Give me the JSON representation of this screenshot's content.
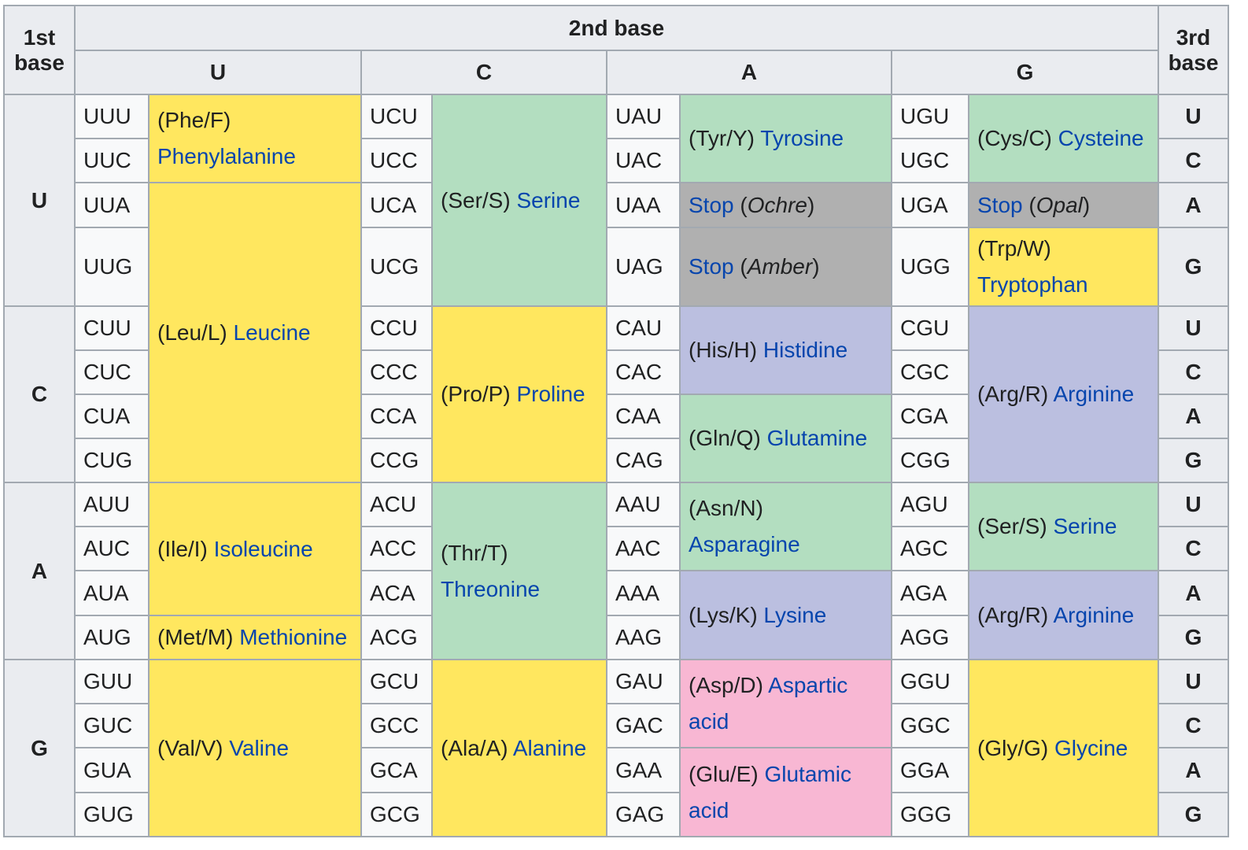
{
  "headers": {
    "first_base": [
      "1st",
      "base"
    ],
    "second_base": "2nd base",
    "third_base": [
      "3rd",
      "base"
    ],
    "bases": [
      "U",
      "C",
      "A",
      "G"
    ]
  },
  "colors": {
    "nonpolar": "#ffe75f",
    "polar": "#b3dec0",
    "stop": "#b0b0b0",
    "basic": "#bbbfe0",
    "acidic": "#f8b7d3",
    "header": "#eaecf0",
    "link": "#0645ad"
  },
  "codons": {
    "U": [
      [
        "UUU",
        "UCU",
        "UAU",
        "UGU"
      ],
      [
        "UUC",
        "UCC",
        "UAC",
        "UGC"
      ],
      [
        "UUA",
        "UCA",
        "UAA",
        "UGA"
      ],
      [
        "UUG",
        "UCG",
        "UAG",
        "UGG"
      ]
    ],
    "C": [
      [
        "CUU",
        "CCU",
        "CAU",
        "CGU"
      ],
      [
        "CUC",
        "CCC",
        "CAC",
        "CGC"
      ],
      [
        "CUA",
        "CCA",
        "CAA",
        "CGA"
      ],
      [
        "CUG",
        "CCG",
        "CAG",
        "CGG"
      ]
    ],
    "A": [
      [
        "AUU",
        "ACU",
        "AAU",
        "AGU"
      ],
      [
        "AUC",
        "ACC",
        "AAC",
        "AGC"
      ],
      [
        "AUA",
        "ACA",
        "AAA",
        "AGA"
      ],
      [
        "AUG",
        "ACG",
        "AAG",
        "AGG"
      ]
    ],
    "G": [
      [
        "GUU",
        "GCU",
        "GAU",
        "GGU"
      ],
      [
        "GUC",
        "GCC",
        "GAC",
        "GGC"
      ],
      [
        "GUA",
        "GCA",
        "GAA",
        "GGA"
      ],
      [
        "GUG",
        "GCG",
        "GAG",
        "GGG"
      ]
    ]
  },
  "amino_acids": {
    "phe": {
      "abbr": "(Phe/F)",
      "name": "Phenylalanine"
    },
    "leu": {
      "abbr": "(Leu/L)",
      "name": "Leucine"
    },
    "ser": {
      "abbr": "(Ser/S)",
      "name": "Serine"
    },
    "tyr": {
      "abbr": "(Tyr/Y)",
      "name": "Tyrosine"
    },
    "cys": {
      "abbr": "(Cys/C)",
      "name": "Cysteine"
    },
    "stop_ochre": {
      "link": "Stop",
      "name": "Ochre"
    },
    "stop_amber": {
      "link": "Stop",
      "name": "Amber"
    },
    "stop_opal": {
      "link": "Stop",
      "name": "Opal"
    },
    "trp": {
      "abbr": "(Trp/W)",
      "name": "Tryptophan"
    },
    "pro": {
      "abbr": "(Pro/P)",
      "name": "Proline"
    },
    "his": {
      "abbr": "(His/H)",
      "name": "Histidine"
    },
    "gln": {
      "abbr": "(Gln/Q)",
      "name": "Glutamine"
    },
    "arg": {
      "abbr": "(Arg/R)",
      "name": "Arginine"
    },
    "ile": {
      "abbr": "(Ile/I)",
      "name": "Isoleucine"
    },
    "met": {
      "abbr": "(Met/M)",
      "name": "Methionine"
    },
    "thr": {
      "abbr": "(Thr/T)",
      "name": "Threonine"
    },
    "asn": {
      "abbr": "(Asn/N)",
      "name": "Asparagine"
    },
    "lys": {
      "abbr": "(Lys/K)",
      "name": "Lysine"
    },
    "val": {
      "abbr": "(Val/V)",
      "name": "Valine"
    },
    "ala": {
      "abbr": "(Ala/A)",
      "name": "Alanine"
    },
    "asp": {
      "abbr": "(Asp/D)",
      "name": "Aspartic acid"
    },
    "glu": {
      "abbr": "(Glu/E)",
      "name": "Glutamic acid"
    },
    "gly": {
      "abbr": "(Gly/G)",
      "name": "Glycine"
    }
  }
}
